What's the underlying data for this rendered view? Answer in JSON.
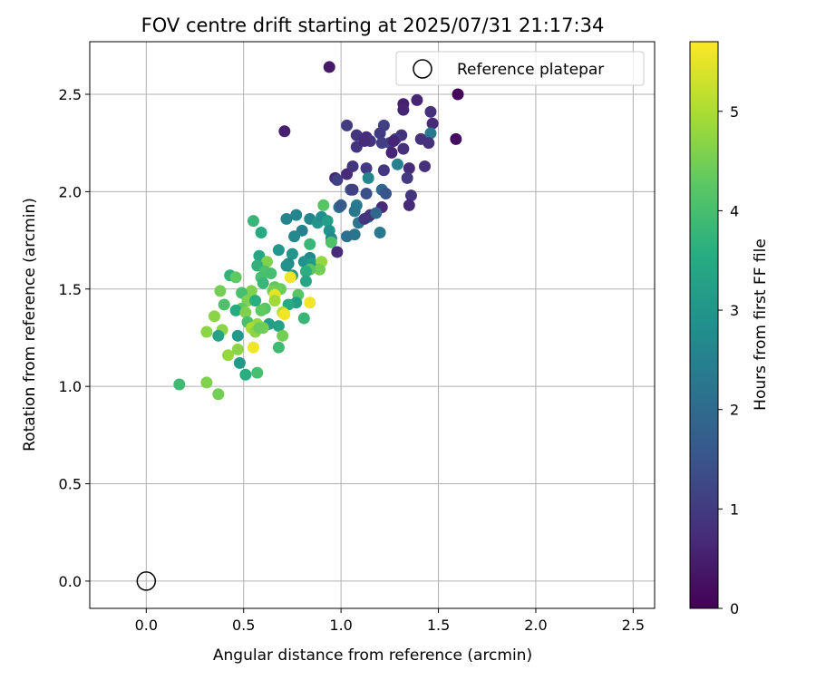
{
  "chart_data": {
    "type": "scatter",
    "title": "FOV centre drift starting at 2025/07/31 21:17:34",
    "xlabel": "Angular distance from reference (arcmin)",
    "ylabel": "Rotation from reference (arcmin)",
    "xlim": [
      -0.29,
      2.61
    ],
    "ylim": [
      -0.14,
      2.77
    ],
    "xticks": [
      "0.0",
      "0.5",
      "1.0",
      "1.5",
      "2.0",
      "2.5"
    ],
    "yticks": [
      "0.0",
      "0.5",
      "1.0",
      "1.5",
      "2.0",
      "2.5"
    ],
    "grid": true,
    "legend": {
      "position": "top-right",
      "entries": [
        "Reference platepar"
      ]
    },
    "reference_point": {
      "x": 0.0,
      "y": 0.0
    },
    "colorbar": {
      "label": "Hours from first FF file",
      "colormap": "viridis",
      "range": [
        0,
        5.7
      ],
      "ticks": [
        "0",
        "1",
        "2",
        "3",
        "4",
        "5"
      ]
    },
    "series": [
      {
        "points": [
          [
            0.94,
            2.64,
            0.4
          ],
          [
            1.6,
            2.5,
            0.1
          ],
          [
            1.39,
            2.47,
            0.6
          ],
          [
            1.32,
            2.45,
            0.5
          ],
          [
            1.32,
            2.42,
            0.6
          ],
          [
            1.46,
            2.41,
            0.8
          ],
          [
            1.47,
            2.35,
            0.7
          ],
          [
            1.03,
            2.34,
            1.0
          ],
          [
            1.22,
            2.34,
            1.1
          ],
          [
            1.59,
            2.27,
            0.2
          ],
          [
            0.71,
            2.31,
            0.5
          ],
          [
            1.08,
            2.29,
            0.9
          ],
          [
            1.13,
            2.28,
            0.7
          ],
          [
            1.2,
            2.3,
            1.0
          ],
          [
            1.31,
            2.29,
            0.8
          ],
          [
            1.41,
            2.27,
            0.8
          ],
          [
            1.46,
            2.3,
            2.3
          ],
          [
            1.15,
            2.26,
            0.9
          ],
          [
            1.25,
            2.25,
            1.2
          ],
          [
            1.28,
            2.27,
            1.0
          ],
          [
            1.21,
            2.25,
            1.1
          ],
          [
            1.45,
            2.25,
            0.8
          ],
          [
            1.08,
            2.23,
            0.9
          ],
          [
            1.32,
            2.22,
            0.8
          ],
          [
            1.26,
            2.2,
            0.6
          ],
          [
            1.29,
            2.14,
            2.5
          ],
          [
            1.43,
            2.13,
            0.8
          ],
          [
            1.06,
            2.13,
            0.9
          ],
          [
            1.13,
            2.12,
            1.0
          ],
          [
            1.22,
            2.11,
            0.9
          ],
          [
            1.35,
            2.12,
            0.7
          ],
          [
            1.03,
            2.09,
            0.7
          ],
          [
            0.97,
            2.07,
            0.6
          ],
          [
            0.98,
            2.06,
            1.1
          ],
          [
            1.14,
            2.07,
            2.6
          ],
          [
            1.34,
            2.07,
            1.0
          ],
          [
            1.05,
            2.01,
            1.4
          ],
          [
            1.06,
            2.01,
            1.1
          ],
          [
            1.21,
            2.01,
            1.9
          ],
          [
            1.23,
            1.99,
            1.5
          ],
          [
            1.13,
            1.99,
            1.4
          ],
          [
            1.36,
            1.98,
            0.9
          ],
          [
            0.91,
            1.93,
            4.2
          ],
          [
            0.99,
            1.92,
            2.1
          ],
          [
            1.0,
            1.93,
            1.6
          ],
          [
            1.08,
            1.93,
            2.4
          ],
          [
            1.07,
            1.9,
            2.3
          ],
          [
            1.14,
            1.87,
            2.0
          ],
          [
            1.15,
            1.88,
            0.8
          ],
          [
            1.21,
            1.92,
            0.7
          ],
          [
            1.35,
            1.93,
            0.7
          ],
          [
            0.72,
            1.86,
            2.6
          ],
          [
            0.77,
            1.88,
            2.6
          ],
          [
            0.84,
            1.86,
            2.6
          ],
          [
            0.88,
            1.84,
            3.0
          ],
          [
            0.9,
            1.87,
            2.8
          ],
          [
            0.93,
            1.85,
            3.2
          ],
          [
            0.55,
            1.85,
            3.8
          ],
          [
            1.09,
            1.84,
            2.2
          ],
          [
            1.18,
            1.89,
            1.9
          ],
          [
            0.94,
            1.8,
            2.9
          ],
          [
            0.8,
            1.8,
            2.5
          ],
          [
            0.59,
            1.79,
            3.5
          ],
          [
            0.76,
            1.77,
            2.7
          ],
          [
            0.95,
            1.76,
            2.7
          ],
          [
            1.03,
            1.77,
            2.1
          ],
          [
            1.07,
            1.78,
            2.2
          ],
          [
            1.2,
            1.79,
            2.3
          ],
          [
            0.95,
            1.74,
            4.1
          ],
          [
            0.84,
            1.73,
            3.8
          ],
          [
            0.68,
            1.7,
            3.0
          ],
          [
            0.75,
            1.68,
            3.0
          ],
          [
            0.98,
            1.69,
            0.7
          ],
          [
            0.58,
            1.67,
            3.4
          ],
          [
            0.84,
            1.66,
            2.7
          ],
          [
            0.81,
            1.64,
            2.9
          ],
          [
            0.62,
            1.64,
            4.6
          ],
          [
            0.73,
            1.63,
            2.7
          ],
          [
            0.72,
            1.62,
            2.9
          ],
          [
            0.85,
            1.63,
            3.1
          ],
          [
            0.9,
            1.64,
            4.8
          ],
          [
            0.57,
            1.62,
            3.7
          ],
          [
            0.89,
            1.6,
            4.5
          ],
          [
            0.84,
            1.6,
            4.2
          ],
          [
            0.82,
            1.59,
            3.6
          ],
          [
            0.61,
            1.59,
            4.1
          ],
          [
            0.64,
            1.58,
            4.0
          ],
          [
            0.75,
            1.57,
            3.1
          ],
          [
            0.43,
            1.57,
            3.7
          ],
          [
            0.46,
            1.56,
            4.3
          ],
          [
            0.59,
            1.56,
            4.0
          ],
          [
            0.74,
            1.56,
            5.6
          ],
          [
            0.82,
            1.54,
            3.4
          ],
          [
            0.6,
            1.53,
            3.8
          ],
          [
            0.66,
            1.51,
            4.3
          ],
          [
            0.69,
            1.5,
            4.4
          ],
          [
            0.65,
            1.49,
            4.5
          ],
          [
            0.38,
            1.49,
            4.5
          ],
          [
            0.54,
            1.49,
            4.6
          ],
          [
            0.66,
            1.47,
            5.5
          ],
          [
            0.49,
            1.48,
            4.0
          ],
          [
            0.78,
            1.47,
            4.2
          ],
          [
            0.77,
            1.43,
            3.2
          ],
          [
            0.66,
            1.44,
            4.9
          ],
          [
            0.73,
            1.42,
            3.5
          ],
          [
            0.52,
            1.44,
            4.6
          ],
          [
            0.56,
            1.44,
            3.6
          ],
          [
            0.84,
            1.43,
            5.6
          ],
          [
            0.4,
            1.42,
            4.1
          ],
          [
            0.61,
            1.4,
            4.2
          ],
          [
            0.49,
            1.4,
            4.3
          ],
          [
            0.59,
            1.39,
            4.3
          ],
          [
            0.46,
            1.39,
            3.5
          ],
          [
            0.51,
            1.38,
            4.6
          ],
          [
            0.7,
            1.38,
            5.1
          ],
          [
            0.71,
            1.37,
            5.6
          ],
          [
            0.35,
            1.36,
            4.7
          ],
          [
            0.81,
            1.35,
            3.8
          ],
          [
            0.52,
            1.33,
            4.0
          ],
          [
            0.57,
            1.32,
            4.8
          ],
          [
            0.63,
            1.32,
            3.2
          ],
          [
            0.68,
            1.31,
            3.3
          ],
          [
            0.54,
            1.3,
            5.0
          ],
          [
            0.56,
            1.28,
            4.7
          ],
          [
            0.6,
            1.3,
            4.5
          ],
          [
            0.58,
            1.3,
            4.4
          ],
          [
            0.39,
            1.29,
            4.7
          ],
          [
            0.31,
            1.28,
            4.7
          ],
          [
            0.37,
            1.26,
            3.3
          ],
          [
            0.47,
            1.26,
            3.1
          ],
          [
            0.7,
            1.26,
            4.5
          ],
          [
            0.55,
            1.2,
            5.6
          ],
          [
            0.47,
            1.19,
            4.7
          ],
          [
            0.68,
            1.2,
            3.9
          ],
          [
            0.42,
            1.16,
            4.8
          ],
          [
            0.48,
            1.12,
            3.1
          ],
          [
            0.51,
            1.06,
            3.6
          ],
          [
            0.57,
            1.07,
            4.0
          ],
          [
            0.17,
            1.01,
            3.9
          ],
          [
            0.31,
            1.02,
            4.6
          ],
          [
            0.37,
            0.96,
            4.5
          ],
          [
            1.12,
            2.26,
            0.7
          ],
          [
            1.27,
            2.26,
            0.6
          ],
          [
            1.12,
            1.86,
            0.9
          ]
        ]
      }
    ]
  }
}
